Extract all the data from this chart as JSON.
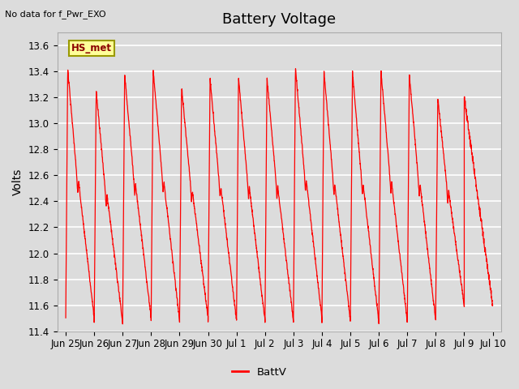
{
  "title": "Battery Voltage",
  "top_left_text": "No data for f_Pwr_EXO",
  "ylabel": "Volts",
  "legend_label": "BattV",
  "legend_line_color": "#ff0000",
  "line_color": "#ff0000",
  "background_color": "#dcdcdc",
  "plot_bg_color": "#dcdcdc",
  "ylim": [
    11.4,
    13.7
  ],
  "yticks": [
    11.4,
    11.6,
    11.8,
    12.0,
    12.2,
    12.4,
    12.6,
    12.8,
    13.0,
    13.2,
    13.4,
    13.6
  ],
  "xtick_labels": [
    "Jun 25",
    "Jun 26",
    "Jun 27",
    "Jun 28",
    "Jun 29",
    "Jun 30",
    "Jul 1",
    "Jul 2",
    "Jul 3",
    "Jul 4",
    "Jul 5",
    "Jul 6",
    "Jul 7",
    "Jul 8",
    "Jul 9",
    "Jul 10"
  ],
  "hs_met_box_color": "#ffff99",
  "hs_met_text_color": "#8b0000",
  "hs_met_border_color": "#999900",
  "title_fontsize": 13,
  "axis_label_fontsize": 10,
  "tick_fontsize": 8.5
}
